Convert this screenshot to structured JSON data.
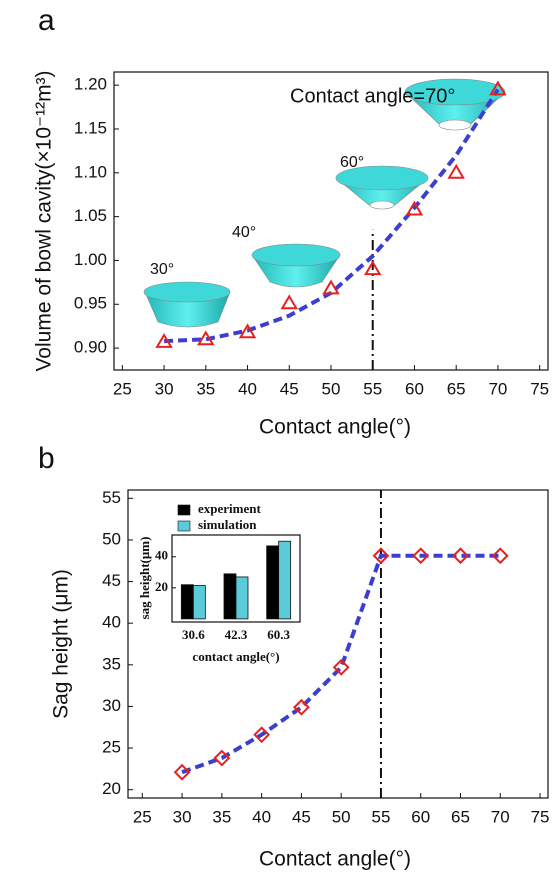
{
  "panel_labels": [
    "a",
    "b"
  ],
  "chart_data": [
    {
      "type": "line",
      "xlabel": "Contact angle(°)",
      "ylabel": "Volume of bowl cavity(×10⁻¹²m³)",
      "annotations": [
        "Contact angle=70°",
        "30°",
        "40°",
        "60°"
      ],
      "x": [
        30,
        35,
        40,
        45,
        50,
        55,
        60,
        65,
        70
      ],
      "series": [
        {
          "color": "#3a3fd0",
          "style": "dashed",
          "values": [
            0.908,
            0.91,
            0.92,
            0.937,
            0.963,
            1.005,
            1.06,
            1.12,
            1.195
          ]
        },
        {
          "color": "#e82020",
          "marker": "triangle",
          "values": [
            0.907,
            0.91,
            0.918,
            0.951,
            0.968,
            0.99,
            1.058,
            1.1,
            1.195
          ]
        }
      ],
      "vline": 55,
      "vline_top": 1.035,
      "xlim": [
        24,
        76
      ],
      "ylim": [
        0.875,
        1.215
      ],
      "xticks": [
        25,
        30,
        35,
        40,
        45,
        50,
        55,
        60,
        65,
        70,
        75
      ],
      "yticks": [
        {
          "value": 0.9,
          "label": "0.90"
        },
        0.95,
        {
          "value": 1.0,
          "label": "1.00"
        },
        1.05,
        {
          "value": 1.1,
          "label": "1.10"
        },
        1.15,
        {
          "value": 1.2,
          "label": "1.20"
        }
      ]
    },
    {
      "type": "line",
      "xlabel": "Contact angle(°)",
      "ylabel": "Sag height (μm)",
      "x": [
        30,
        35,
        40,
        45,
        50,
        55,
        60,
        65,
        70
      ],
      "series": [
        {
          "color": "#3a3fd0",
          "style": "dashed",
          "values": [
            22.1,
            23.8,
            26.6,
            29.9,
            34.7,
            48.1,
            48.1,
            48.1,
            48.1
          ]
        },
        {
          "color": "#e82020",
          "marker": "diamond",
          "values": [
            22.1,
            23.8,
            26.6,
            29.9,
            34.7,
            48.1,
            48.1,
            48.1,
            48.1
          ]
        }
      ],
      "vline": 55,
      "vline_top": 56,
      "xlim": [
        23.2,
        76
      ],
      "ylim": [
        19,
        56
      ],
      "xticks": [
        25,
        30,
        35,
        40,
        45,
        50,
        55,
        60,
        65,
        70,
        75
      ],
      "yticks": [
        20,
        25,
        30,
        35,
        40,
        45,
        50,
        55
      ]
    },
    {
      "type": "bar",
      "xlabel": "contact angle(°)",
      "ylabel": "sag height(μm)",
      "categories": [
        "30.6",
        "42.3",
        "60.3"
      ],
      "series": [
        {
          "name": "experiment",
          "color": "#000000",
          "values": [
            22,
            29,
            47
          ]
        },
        {
          "name": "simulation",
          "color": "#5ccbd9",
          "values": [
            21.5,
            27,
            50
          ]
        }
      ],
      "ylim": [
        -2,
        54
      ],
      "yticks": [
        20,
        40
      ]
    }
  ]
}
